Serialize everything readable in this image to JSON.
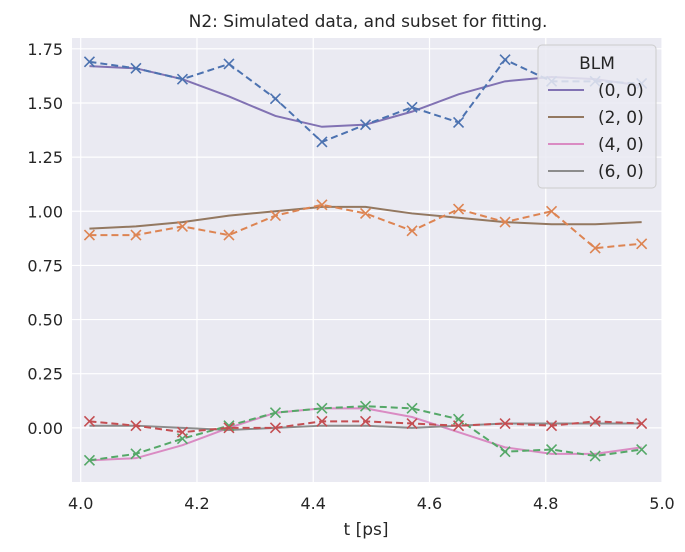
{
  "chart_data": {
    "type": "line",
    "title": "N2: Simulated data, and subset for fitting.",
    "xlabel": "t [ps]",
    "ylabel": "",
    "xlim": [
      3.985,
      5.0
    ],
    "ylim": [
      -0.25,
      1.8
    ],
    "grid": true,
    "background": "#eaeaf2",
    "xticks": [
      4.0,
      4.2,
      4.4,
      4.6,
      4.8,
      5.0
    ],
    "xtick_labels": [
      "4.0",
      "4.2",
      "4.4",
      "4.6",
      "4.8",
      "5.0"
    ],
    "yticks": [
      0.0,
      0.25,
      0.5,
      0.75,
      1.0,
      1.25,
      1.5,
      1.75
    ],
    "ytick_labels": [
      "0.00",
      "0.25",
      "0.50",
      "0.75",
      "1.00",
      "1.25",
      "1.50",
      "1.75"
    ],
    "x": [
      4.015,
      4.095,
      4.175,
      4.255,
      4.335,
      4.415,
      4.49,
      4.57,
      4.65,
      4.73,
      4.81,
      4.885,
      4.965
    ],
    "legend": {
      "title": "BLM",
      "placement": "top-right",
      "entries": [
        {
          "label": "(0, 0)",
          "color": "#8172b3"
        },
        {
          "label": "(2, 0)",
          "color": "#937860"
        },
        {
          "label": "(4, 0)",
          "color": "#da8bc3"
        },
        {
          "label": "(6, 0)",
          "color": "#8c8c8c"
        }
      ]
    },
    "series": [
      {
        "role": "data",
        "color": "#4c72b0",
        "values": [
          1.69,
          1.66,
          1.61,
          1.68,
          1.52,
          1.32,
          1.4,
          1.48,
          1.41,
          1.7,
          1.6,
          1.6,
          1.59
        ]
      },
      {
        "role": "data",
        "color": "#dd8452",
        "values": [
          0.89,
          0.89,
          0.93,
          0.89,
          0.98,
          1.03,
          0.99,
          0.91,
          1.01,
          0.95,
          1.0,
          0.83,
          0.85
        ]
      },
      {
        "role": "data",
        "color": "#55a868",
        "values": [
          -0.15,
          -0.12,
          -0.05,
          0.01,
          0.07,
          0.09,
          0.1,
          0.09,
          0.04,
          -0.11,
          -0.1,
          -0.13,
          -0.1
        ]
      },
      {
        "role": "data",
        "color": "#c44e52",
        "values": [
          0.03,
          0.01,
          -0.02,
          0.0,
          0.0,
          0.03,
          0.03,
          0.02,
          0.01,
          0.02,
          0.01,
          0.03,
          0.02
        ]
      },
      {
        "role": "fit",
        "name": "(0, 0)",
        "color": "#8172b3",
        "values": [
          1.67,
          1.66,
          1.61,
          1.53,
          1.44,
          1.39,
          1.4,
          1.46,
          1.54,
          1.6,
          1.62,
          1.61,
          1.58
        ]
      },
      {
        "role": "fit",
        "name": "(2, 0)",
        "color": "#937860",
        "values": [
          0.92,
          0.93,
          0.95,
          0.98,
          1.0,
          1.02,
          1.02,
          0.99,
          0.97,
          0.95,
          0.94,
          0.94,
          0.95
        ]
      },
      {
        "role": "fit",
        "name": "(4, 0)",
        "color": "#da8bc3",
        "values": [
          -0.15,
          -0.14,
          -0.08,
          0.0,
          0.07,
          0.09,
          0.09,
          0.05,
          -0.02,
          -0.09,
          -0.12,
          -0.12,
          -0.09
        ]
      },
      {
        "role": "fit",
        "name": "(6, 0)",
        "color": "#8c8c8c",
        "values": [
          0.01,
          0.01,
          0.0,
          -0.01,
          0.0,
          0.01,
          0.01,
          0.0,
          0.01,
          0.02,
          0.02,
          0.02,
          0.02
        ]
      }
    ]
  }
}
